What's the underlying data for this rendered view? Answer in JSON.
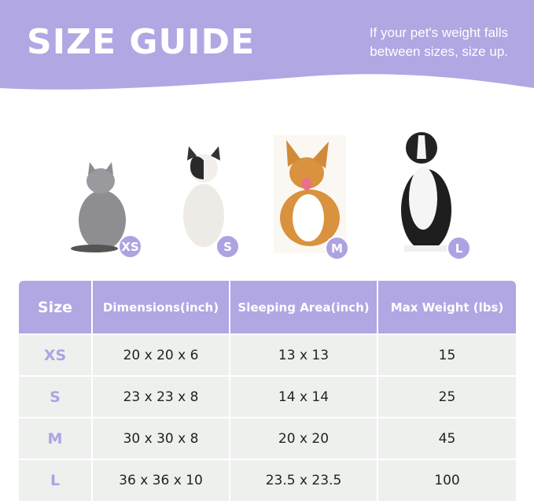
{
  "header": {
    "title": "SIZE GUIDE",
    "note_line1": "If your pet's weight falls",
    "note_line2": "between sizes, size up."
  },
  "colors": {
    "accent": "#b0a7e3",
    "row_bg": "#eef0ee"
  },
  "pets": [
    {
      "animal": "gray cat",
      "badge": "XS"
    },
    {
      "animal": "french bulldog",
      "badge": "S"
    },
    {
      "animal": "corgi",
      "badge": "M"
    },
    {
      "animal": "border collie",
      "badge": "L"
    }
  ],
  "table": {
    "headers": [
      "Size",
      "Dimensions(inch)",
      "Sleeping Area(inch)",
      "Max Weight (lbs)"
    ],
    "rows": [
      [
        "XS",
        "20 x 20 x 6",
        "13 x 13",
        "15"
      ],
      [
        "S",
        "23 x 23 x 8",
        "14 x 14",
        "25"
      ],
      [
        "M",
        "30 x 30 x 8",
        "20 x 20",
        "45"
      ],
      [
        "L",
        "36 x 36 x 10",
        "23.5 x 23.5",
        "100"
      ]
    ]
  }
}
